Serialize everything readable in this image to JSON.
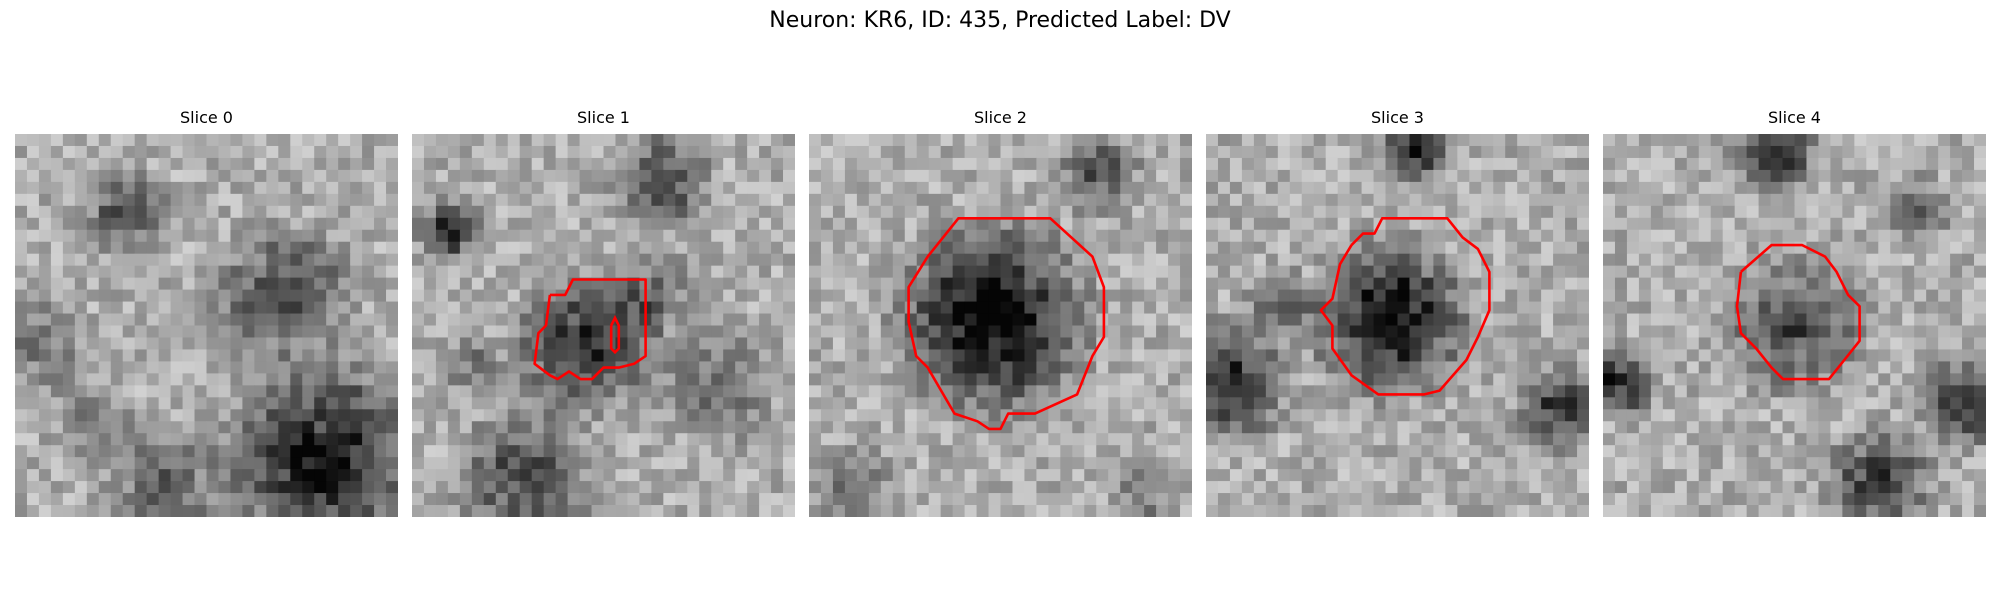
{
  "figure": {
    "title": "Neuron: KR6, ID: 435, Predicted Label: DV",
    "contour_color": "#ff0000",
    "slices": [
      {
        "label": "Slice 0",
        "seed": 11,
        "has_contour": false
      },
      {
        "label": "Slice 1",
        "seed": 23,
        "has_contour": true
      },
      {
        "label": "Slice 2",
        "seed": 37,
        "has_contour": true
      },
      {
        "label": "Slice 3",
        "seed": 41,
        "has_contour": true
      },
      {
        "label": "Slice 4",
        "seed": 59,
        "has_contour": true
      }
    ]
  }
}
